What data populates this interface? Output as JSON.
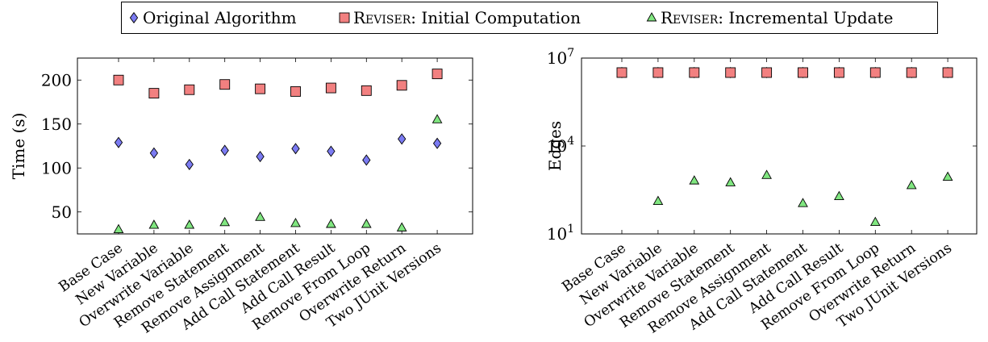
{
  "legend": {
    "entries": [
      {
        "label": "Original Algorithm",
        "marker": "diamond",
        "color": "#7b7bf2"
      },
      {
        "label_prefix": "Reviser",
        "label_suffix": ": Initial Computation",
        "marker": "square",
        "color": "#f28080"
      },
      {
        "label_prefix": "Reviser",
        "label_suffix": ": Incremental Update",
        "marker": "triangle",
        "color": "#80e680"
      }
    ]
  },
  "chart_data": [
    {
      "type": "scatter",
      "ylabel": "Time (s)",
      "yscale": "linear",
      "ylim": [
        25,
        225
      ],
      "yticks": [
        50,
        100,
        150,
        200
      ],
      "categories": [
        "Base Case",
        "New Variable",
        "Overwrite Variable",
        "Remove Statement",
        "Remove Assignment",
        "Add Call Statement",
        "Add Call Result",
        "Remove From Loop",
        "Overwrite Return",
        "Two JUnit Versions"
      ],
      "series": [
        {
          "name": "Original Algorithm",
          "marker": "diamond",
          "color": "#7b7bf2",
          "values": [
            129,
            117,
            104,
            120,
            113,
            122,
            119,
            109,
            133,
            128
          ]
        },
        {
          "name": "Reviser: Initial Computation",
          "marker": "square",
          "color": "#f28080",
          "values": [
            200,
            185,
            189,
            195,
            190,
            187,
            191,
            188,
            194,
            207
          ]
        },
        {
          "name": "Reviser: Incremental Update",
          "marker": "triangle",
          "color": "#80e680",
          "values": [
            30,
            35,
            35,
            38,
            44,
            37,
            36,
            36,
            32,
            155
          ]
        }
      ]
    },
    {
      "type": "scatter",
      "ylabel": "Edges",
      "yscale": "log",
      "ylim": [
        10,
        10000000
      ],
      "yticks": [
        {
          "value": 10,
          "base": "10",
          "exp": "1"
        },
        {
          "value": 10000,
          "base": "10",
          "exp": "4"
        },
        {
          "value": 10000000,
          "base": "10",
          "exp": "7"
        }
      ],
      "categories": [
        "Base Case",
        "New Variable",
        "Overwrite Variable",
        "Remove Statement",
        "Remove Assignment",
        "Add Call Statement",
        "Add Call Result",
        "Remove From Loop",
        "Overwrite Return",
        "Two JUnit Versions"
      ],
      "series": [
        {
          "name": "Original Algorithm",
          "marker": "diamond",
          "color": "#7b7bf2",
          "values": [
            3200000,
            3200000,
            3200000,
            3200000,
            3200000,
            3200000,
            3200000,
            3200000,
            3200000,
            3200000
          ]
        },
        {
          "name": "Reviser: Initial Computation",
          "marker": "square",
          "color": "#f28080",
          "values": [
            3200000,
            3200000,
            3200000,
            3200000,
            3200000,
            3200000,
            3200000,
            3200000,
            3200000,
            3200000
          ]
        },
        {
          "name": "Reviser: Incremental Update",
          "marker": "triangle",
          "color": "#80e680",
          "values": null
        }
      ],
      "incremental_values": [
        null,
        130,
        650,
        560,
        1000,
        110,
        190,
        25,
        450,
        870
      ]
    }
  ]
}
